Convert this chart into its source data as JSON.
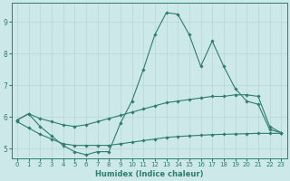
{
  "xlabel": "Humidex (Indice chaleur)",
  "x_values": [
    0,
    1,
    2,
    3,
    4,
    5,
    6,
    7,
    8,
    9,
    10,
    11,
    12,
    13,
    14,
    15,
    16,
    17,
    18,
    19,
    20,
    21,
    22,
    23
  ],
  "main_line": [
    5.9,
    6.1,
    5.7,
    5.4,
    5.1,
    4.9,
    4.8,
    4.9,
    4.9,
    5.8,
    6.5,
    7.5,
    8.6,
    9.3,
    9.25,
    8.6,
    7.6,
    8.4,
    7.6,
    6.9,
    6.5,
    6.4,
    5.6,
    5.5
  ],
  "upper_line": [
    5.9,
    6.1,
    5.95,
    5.85,
    5.75,
    5.7,
    5.75,
    5.85,
    5.95,
    6.05,
    6.15,
    6.25,
    6.35,
    6.45,
    6.5,
    6.55,
    6.6,
    6.65,
    6.65,
    6.7,
    6.7,
    6.65,
    5.7,
    5.5
  ],
  "lower_line": [
    5.85,
    5.65,
    5.45,
    5.3,
    5.15,
    5.1,
    5.1,
    5.1,
    5.1,
    5.15,
    5.2,
    5.25,
    5.3,
    5.35,
    5.38,
    5.4,
    5.42,
    5.44,
    5.45,
    5.46,
    5.47,
    5.48,
    5.48,
    5.48
  ],
  "line_color": "#2e7d6e",
  "bg_color": "#cce8e8",
  "grid_color": "#b8d4d4",
  "ylim": [
    4.7,
    9.6
  ],
  "yticks": [
    5,
    6,
    7,
    8,
    9
  ],
  "xticks": [
    0,
    1,
    2,
    3,
    4,
    5,
    6,
    7,
    8,
    9,
    10,
    11,
    12,
    13,
    14,
    15,
    16,
    17,
    18,
    19,
    20,
    21,
    22,
    23
  ],
  "tick_fontsize": 5.0,
  "xlabel_fontsize": 6.0,
  "ytick_fontsize": 5.5,
  "marker_size": 1.8,
  "line_width": 0.8
}
